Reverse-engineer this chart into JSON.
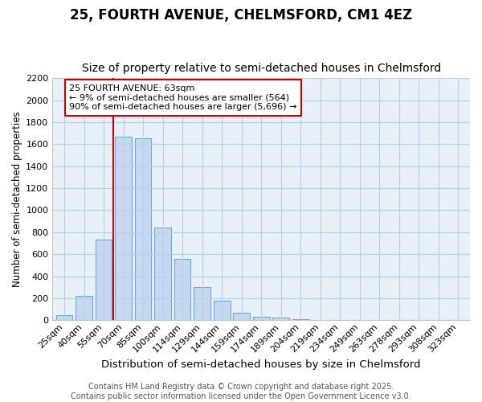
{
  "title": "25, FOURTH AVENUE, CHELMSFORD, CM1 4EZ",
  "subtitle": "Size of property relative to semi-detached houses in Chelmsford",
  "xlabel": "Distribution of semi-detached houses by size in Chelmsford",
  "ylabel": "Number of semi-detached properties",
  "categories": [
    "25sqm",
    "40sqm",
    "55sqm",
    "70sqm",
    "85sqm",
    "100sqm",
    "114sqm",
    "129sqm",
    "144sqm",
    "159sqm",
    "174sqm",
    "189sqm",
    "204sqm",
    "219sqm",
    "234sqm",
    "249sqm",
    "263sqm",
    "278sqm",
    "293sqm",
    "308sqm",
    "323sqm"
  ],
  "values": [
    45,
    225,
    730,
    1670,
    1655,
    840,
    560,
    300,
    180,
    70,
    35,
    25,
    12,
    0,
    0,
    0,
    0,
    0,
    0,
    0,
    0
  ],
  "bar_color": "#c5d8f0",
  "bar_edge_color": "#6aaad4",
  "grid_color": "#b8cfe8",
  "bg_color": "#ffffff",
  "plot_bg_color": "#e8f0f8",
  "vline_x_index": 3,
  "vline_color": "#cc0000",
  "annotation_title": "25 FOURTH AVENUE: 63sqm",
  "annotation_line1": "← 9% of semi-detached houses are smaller (564)",
  "annotation_line2": "90% of semi-detached houses are larger (5,696) →",
  "annotation_box_color": "#cc0000",
  "ylim": [
    0,
    2200
  ],
  "yticks": [
    0,
    200,
    400,
    600,
    800,
    1000,
    1200,
    1400,
    1600,
    1800,
    2000,
    2200
  ],
  "footer": "Contains HM Land Registry data © Crown copyright and database right 2025.\nContains public sector information licensed under the Open Government Licence v3.0.",
  "title_fontsize": 12,
  "subtitle_fontsize": 10,
  "xlabel_fontsize": 9.5,
  "ylabel_fontsize": 8.5,
  "tick_fontsize": 8,
  "footer_fontsize": 7
}
